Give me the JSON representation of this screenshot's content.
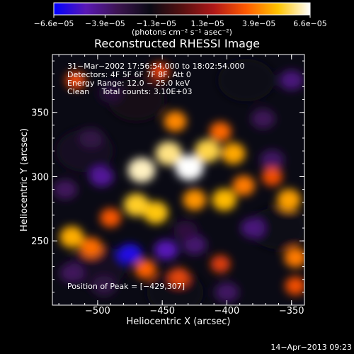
{
  "chart_data": {
    "type": "heatmap",
    "title": "Reconstructed RHESSI Image",
    "xlabel": "Heliocentric X (arcsec)",
    "ylabel": "Heliocentric Y (arcsec)",
    "xlim": [
      -535,
      -340
    ],
    "ylim": [
      200,
      395
    ],
    "x_ticks": [
      -500,
      -450,
      -400,
      -350
    ],
    "y_ticks": [
      250,
      300,
      350
    ],
    "x_tick_labels": [
      "−500",
      "−450",
      "−400",
      "−350"
    ],
    "y_tick_labels": [
      "250",
      "300",
      "350"
    ],
    "colorbar": {
      "min": -6.6e-05,
      "max": 6.6e-05,
      "tick_labels": [
        "−6.6e−05",
        "−3.9e−05",
        "−1.3e−05",
        "1.3e−05",
        "3.9e−05",
        "6.6e−05"
      ],
      "unit_label": "(photons cm⁻² s⁻¹ asec⁻²)",
      "colors": [
        "#0000ff",
        "#5a18b4",
        "#3c1450",
        "#0a0a14",
        "#551010",
        "#b01818",
        "#ff5a00",
        "#ffc400",
        "#ffffff"
      ]
    },
    "annotations": [
      "31−Mar−2002 17:56:54.000 to 18:02:54.000",
      "Detectors: 4F 5F 6F 7F 8F, Att 0",
      "Energy Range: 12.0 − 25.0 keV",
      "Clean     Total counts: 3.10E+03"
    ],
    "peak_label": "Position of Peak = [−429,307]",
    "peak": [
      -429,
      307
    ],
    "hot_sources": [
      {
        "x": -466,
        "y": 305,
        "value": 6.2e-05
      },
      {
        "x": -445,
        "y": 318,
        "value": 5.8e-05
      },
      {
        "x": -429,
        "y": 307,
        "value": 6.6e-05
      },
      {
        "x": -415,
        "y": 320,
        "value": 5.4e-05
      },
      {
        "x": -395,
        "y": 318,
        "value": 4.5e-05
      },
      {
        "x": -470,
        "y": 278,
        "value": 5.2e-05
      },
      {
        "x": -455,
        "y": 272,
        "value": 5e-05
      },
      {
        "x": -425,
        "y": 282,
        "value": 4.2e-05
      },
      {
        "x": -402,
        "y": 282,
        "value": 4.8e-05
      },
      {
        "x": -387,
        "y": 293,
        "value": 3.8e-05
      },
      {
        "x": -440,
        "y": 343,
        "value": 4e-05
      },
      {
        "x": -405,
        "y": 335,
        "value": 3.5e-05
      },
      {
        "x": -490,
        "y": 268,
        "value": 3.2e-05
      },
      {
        "x": -520,
        "y": 253,
        "value": 4.6e-05
      },
      {
        "x": -505,
        "y": 245,
        "value": 3.6e-05
      },
      {
        "x": -352,
        "y": 282,
        "value": 4.4e-05
      },
      {
        "x": -365,
        "y": 300,
        "value": 3e-05
      },
      {
        "x": -463,
        "y": 228,
        "value": 3.4e-05
      },
      {
        "x": -437,
        "y": 222,
        "value": 2.8e-05
      },
      {
        "x": -347,
        "y": 237,
        "value": 3.8e-05
      },
      {
        "x": -347,
        "y": 215,
        "value": 3e-05
      },
      {
        "x": -405,
        "y": 232,
        "value": 2.6e-05
      },
      {
        "x": -517,
        "y": 375,
        "value": 2.8e-05
      },
      {
        "x": -452,
        "y": 382,
        "value": 2.6e-05
      }
    ],
    "cold_sources": [
      {
        "x": -497,
        "y": 300,
        "value": -4.5e-05
      },
      {
        "x": -505,
        "y": 330,
        "value": -3e-05
      },
      {
        "x": -525,
        "y": 290,
        "value": -3.5e-05
      },
      {
        "x": -475,
        "y": 240,
        "value": -6e-05
      },
      {
        "x": -447,
        "y": 243,
        "value": -5e-05
      },
      {
        "x": -425,
        "y": 247,
        "value": -3.8e-05
      },
      {
        "x": -380,
        "y": 260,
        "value": -4e-05
      },
      {
        "x": -365,
        "y": 313,
        "value": -3.6e-05
      },
      {
        "x": -372,
        "y": 345,
        "value": -3.4e-05
      },
      {
        "x": -350,
        "y": 375,
        "value": -4e-05
      },
      {
        "x": -520,
        "y": 225,
        "value": -3.5e-05
      },
      {
        "x": -495,
        "y": 215,
        "value": -3e-05
      },
      {
        "x": -400,
        "y": 210,
        "value": -3.6e-05
      },
      {
        "x": -432,
        "y": 258,
        "value": -2.8e-05
      },
      {
        "x": -490,
        "y": 365,
        "value": -2.6e-05
      }
    ]
  },
  "footer": {
    "timestamp": "14−Apr−2013 09:23"
  }
}
